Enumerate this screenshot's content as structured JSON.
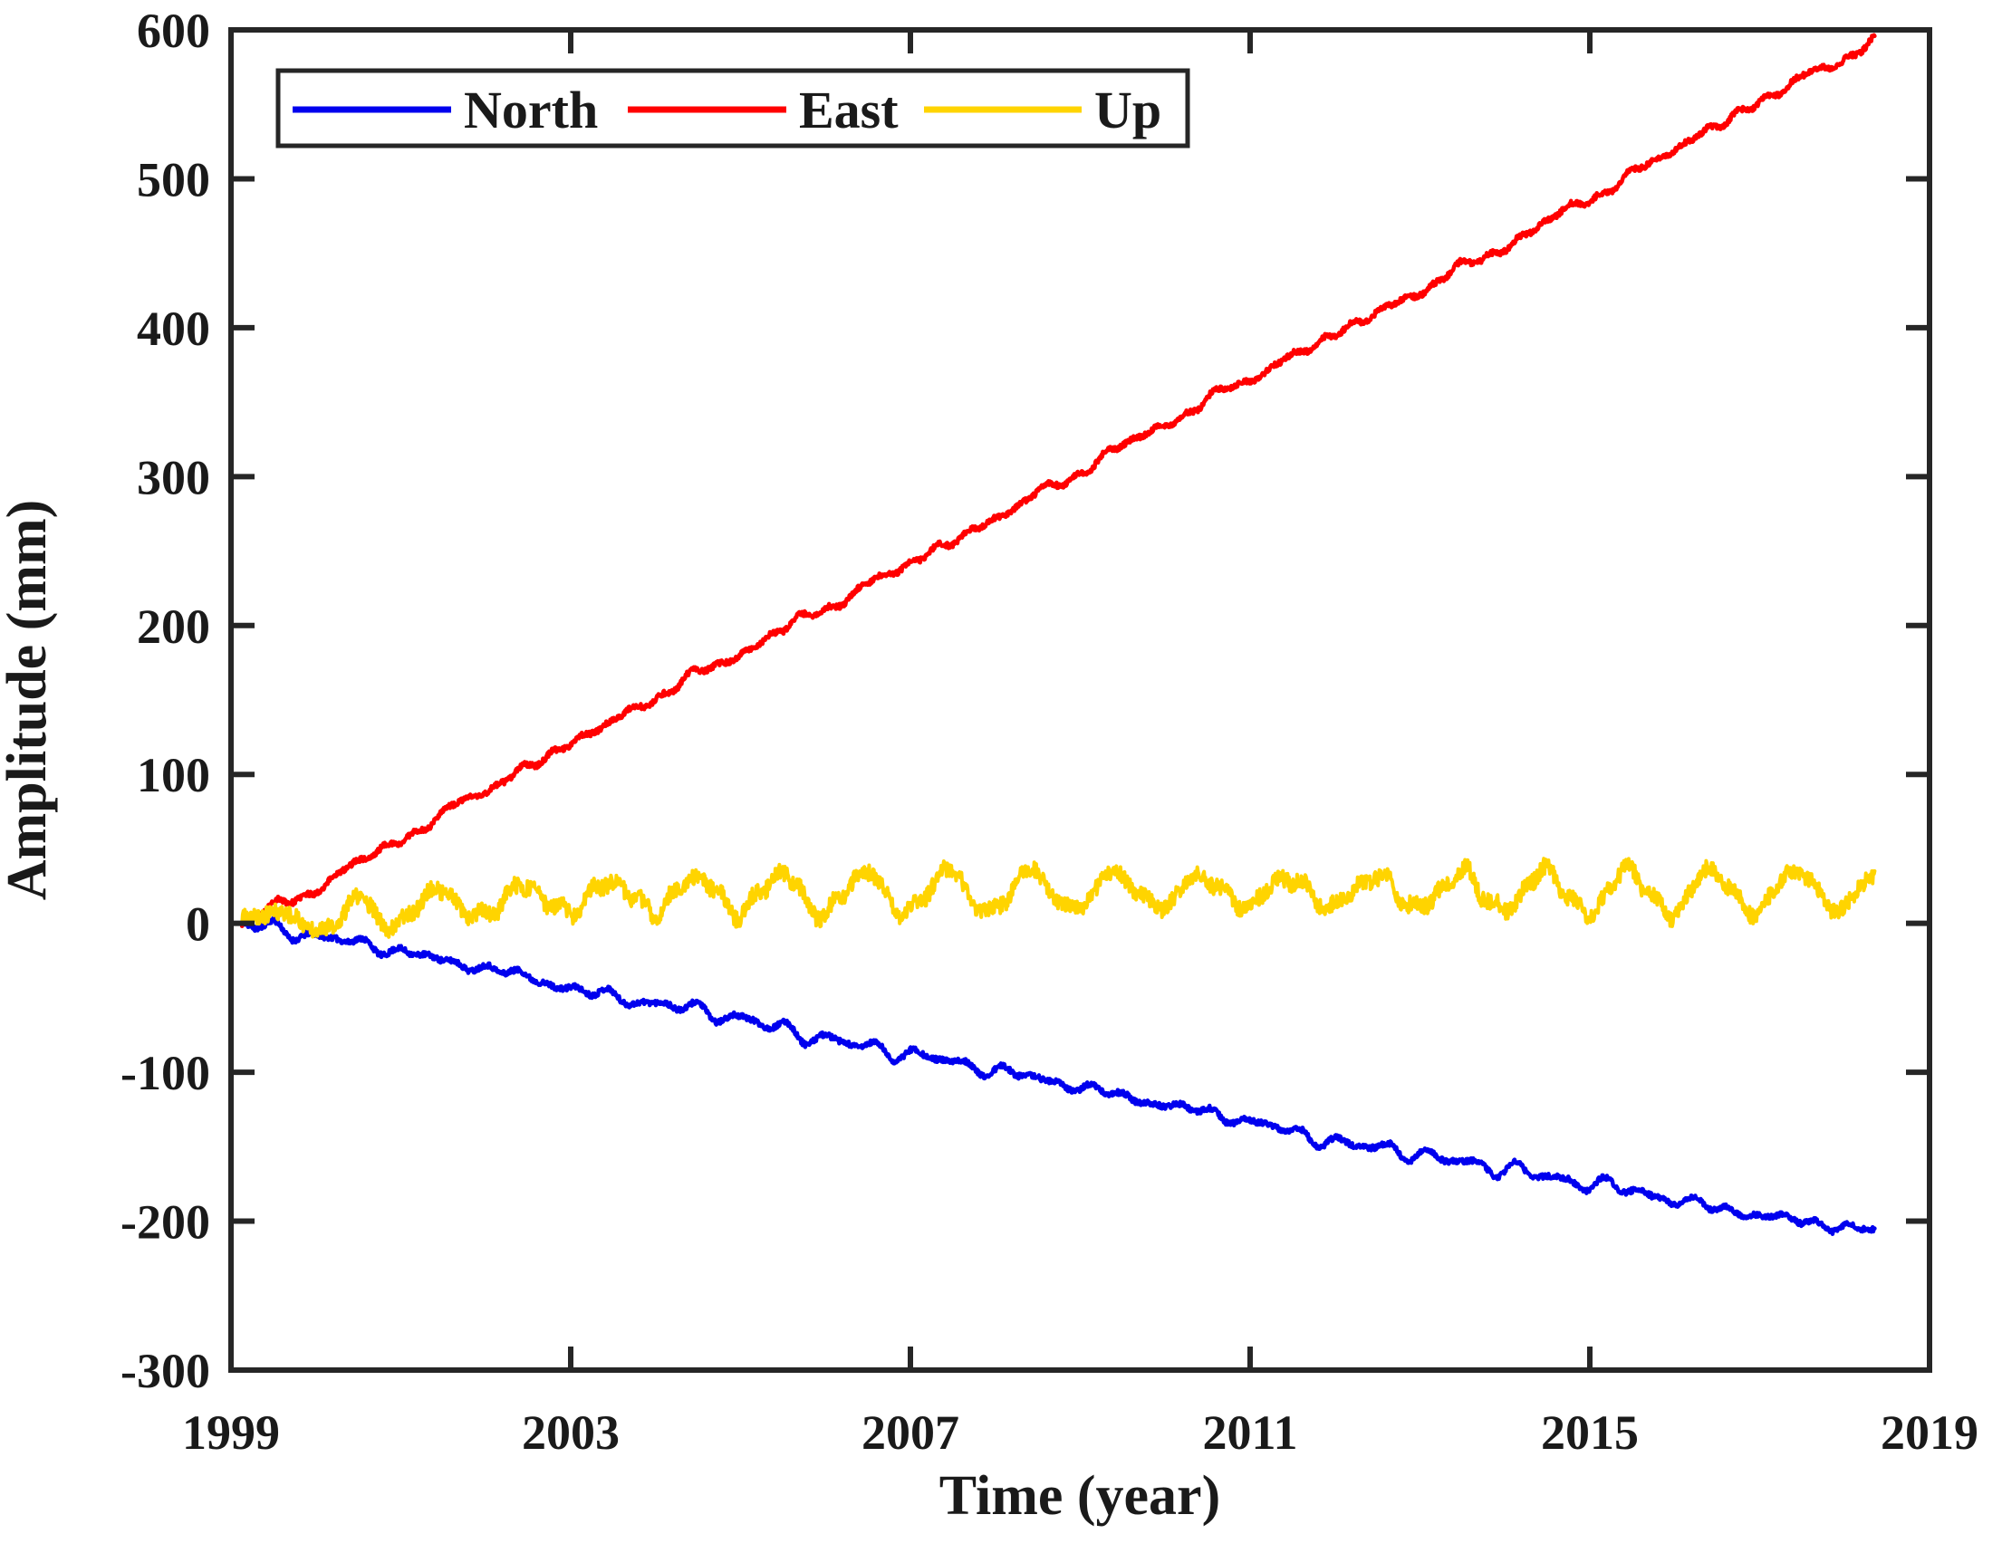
{
  "figure": {
    "background": "#ffffff",
    "axis_color": "#262626",
    "axis_line_width": 6,
    "tick_length": 26
  },
  "chart_data": {
    "type": "line",
    "title": "",
    "xlabel": "Time (year)",
    "ylabel": "Amplitude (mm)",
    "xlim": [
      1999,
      2019
    ],
    "ylim": [
      -300,
      600
    ],
    "xticks": [
      1999,
      2003,
      2007,
      2011,
      2015,
      2019
    ],
    "yticks": [
      -300,
      -200,
      -100,
      0,
      100,
      200,
      300,
      400,
      500,
      600
    ],
    "grid": false,
    "legend_position": "top-left-inside",
    "legend": [
      "North",
      "East",
      "Up"
    ],
    "x_start": 1999.13,
    "x_end": 2018.36,
    "series": [
      {
        "name": "North",
        "color": "#0000ee",
        "trend_mm_per_yr": -10.7,
        "noise_mm": 1.8,
        "wobble_mm": 2.2,
        "seasonal": {
          "amp": 1.5,
          "peak": 0.3
        },
        "seed": 11,
        "anchors": [
          [
            1999.13,
            0
          ],
          [
            1999.6,
            -4
          ],
          [
            2000,
            -9
          ],
          [
            2000.5,
            -13
          ],
          [
            2001,
            -19
          ],
          [
            2001.5,
            -25
          ],
          [
            2002,
            -30
          ],
          [
            2002.5,
            -36
          ],
          [
            2003,
            -44
          ],
          [
            2003.5,
            -49
          ],
          [
            2004,
            -54
          ],
          [
            2004.5,
            -58
          ],
          [
            2005,
            -64
          ],
          [
            2005.5,
            -71
          ],
          [
            2006,
            -78
          ],
          [
            2006.5,
            -83
          ],
          [
            2007,
            -88
          ],
          [
            2007.5,
            -93
          ],
          [
            2008,
            -99
          ],
          [
            2008.5,
            -104
          ],
          [
            2009,
            -110
          ],
          [
            2009.5,
            -116
          ],
          [
            2010,
            -122
          ],
          [
            2010.5,
            -127
          ],
          [
            2011,
            -133
          ],
          [
            2011.5,
            -140
          ],
          [
            2012,
            -147
          ],
          [
            2012.3,
            -150
          ],
          [
            2012.7,
            -151
          ],
          [
            2013,
            -156
          ],
          [
            2013.5,
            -160
          ],
          [
            2014,
            -165
          ],
          [
            2014.5,
            -170
          ],
          [
            2015,
            -175
          ],
          [
            2015.3,
            -177
          ],
          [
            2015.7,
            -182
          ],
          [
            2016,
            -186
          ],
          [
            2016.5,
            -191
          ],
          [
            2017,
            -196
          ],
          [
            2017.5,
            -200
          ],
          [
            2018,
            -204
          ],
          [
            2018.36,
            -207
          ]
        ]
      },
      {
        "name": "East",
        "color": "#ff0000",
        "trend_mm_per_yr": 30.7,
        "noise_mm": 1.8,
        "wobble_mm": 2.2,
        "seasonal": {
          "amp": 1.5,
          "peak": 0.55
        },
        "seed": 23,
        "anchors": [
          [
            1999.13,
            0
          ],
          [
            1999.4,
            8
          ],
          [
            1999.7,
            15
          ],
          [
            2000,
            24
          ],
          [
            2000.5,
            40
          ],
          [
            2001,
            57
          ],
          [
            2001.5,
            73
          ],
          [
            2002,
            90
          ],
          [
            2002.5,
            105
          ],
          [
            2003,
            121
          ],
          [
            2003.5,
            136
          ],
          [
            2004,
            152
          ],
          [
            2004.5,
            167
          ],
          [
            2005,
            182
          ],
          [
            2005.5,
            197
          ],
          [
            2006,
            212
          ],
          [
            2006.5,
            227
          ],
          [
            2007,
            242
          ],
          [
            2007.5,
            257
          ],
          [
            2008,
            272
          ],
          [
            2008.5,
            288
          ],
          [
            2009,
            304
          ],
          [
            2009.5,
            320
          ],
          [
            2010,
            336
          ],
          [
            2010.5,
            351
          ],
          [
            2011,
            366
          ],
          [
            2011.5,
            381
          ],
          [
            2012,
            396
          ],
          [
            2012.5,
            410
          ],
          [
            2013,
            425
          ],
          [
            2013.5,
            440
          ],
          [
            2014,
            455
          ],
          [
            2014.5,
            471
          ],
          [
            2015,
            487
          ],
          [
            2015.5,
            503
          ],
          [
            2016,
            520
          ],
          [
            2016.5,
            536
          ],
          [
            2017,
            552
          ],
          [
            2017.5,
            567
          ],
          [
            2018,
            582
          ],
          [
            2018.36,
            592
          ]
        ]
      },
      {
        "name": "Up",
        "color": "#ffd400",
        "trend_mm_per_yr": 0,
        "noise_mm": 5.5,
        "wobble_mm": 3.0,
        "seasonal": {
          "amp": 12,
          "peak": 0.45,
          "ramp": [
            2000.15,
            2000.55
          ]
        },
        "seed": 37,
        "anchors": [
          [
            1999.13,
            0
          ],
          [
            1999.3,
            3
          ],
          [
            1999.5,
            6
          ],
          [
            1999.75,
            7
          ],
          [
            1999.9,
            2
          ],
          [
            2000.0,
            -5
          ],
          [
            2000.1,
            -7
          ],
          [
            2000.25,
            -3
          ],
          [
            2000.45,
            8
          ],
          [
            2000.7,
            9
          ],
          [
            2001.0,
            10
          ],
          [
            2001.5,
            12
          ],
          [
            2002,
            14
          ],
          [
            2003,
            17
          ],
          [
            2004,
            19
          ],
          [
            2005,
            20
          ],
          [
            2006,
            20
          ],
          [
            2007,
            21
          ],
          [
            2008,
            21
          ],
          [
            2009,
            22
          ],
          [
            2010,
            22
          ],
          [
            2011,
            21
          ],
          [
            2012,
            21
          ],
          [
            2013,
            22
          ],
          [
            2014,
            22
          ],
          [
            2015,
            21
          ],
          [
            2016,
            21
          ],
          [
            2017,
            22
          ],
          [
            2018.36,
            22
          ]
        ]
      }
    ]
  }
}
